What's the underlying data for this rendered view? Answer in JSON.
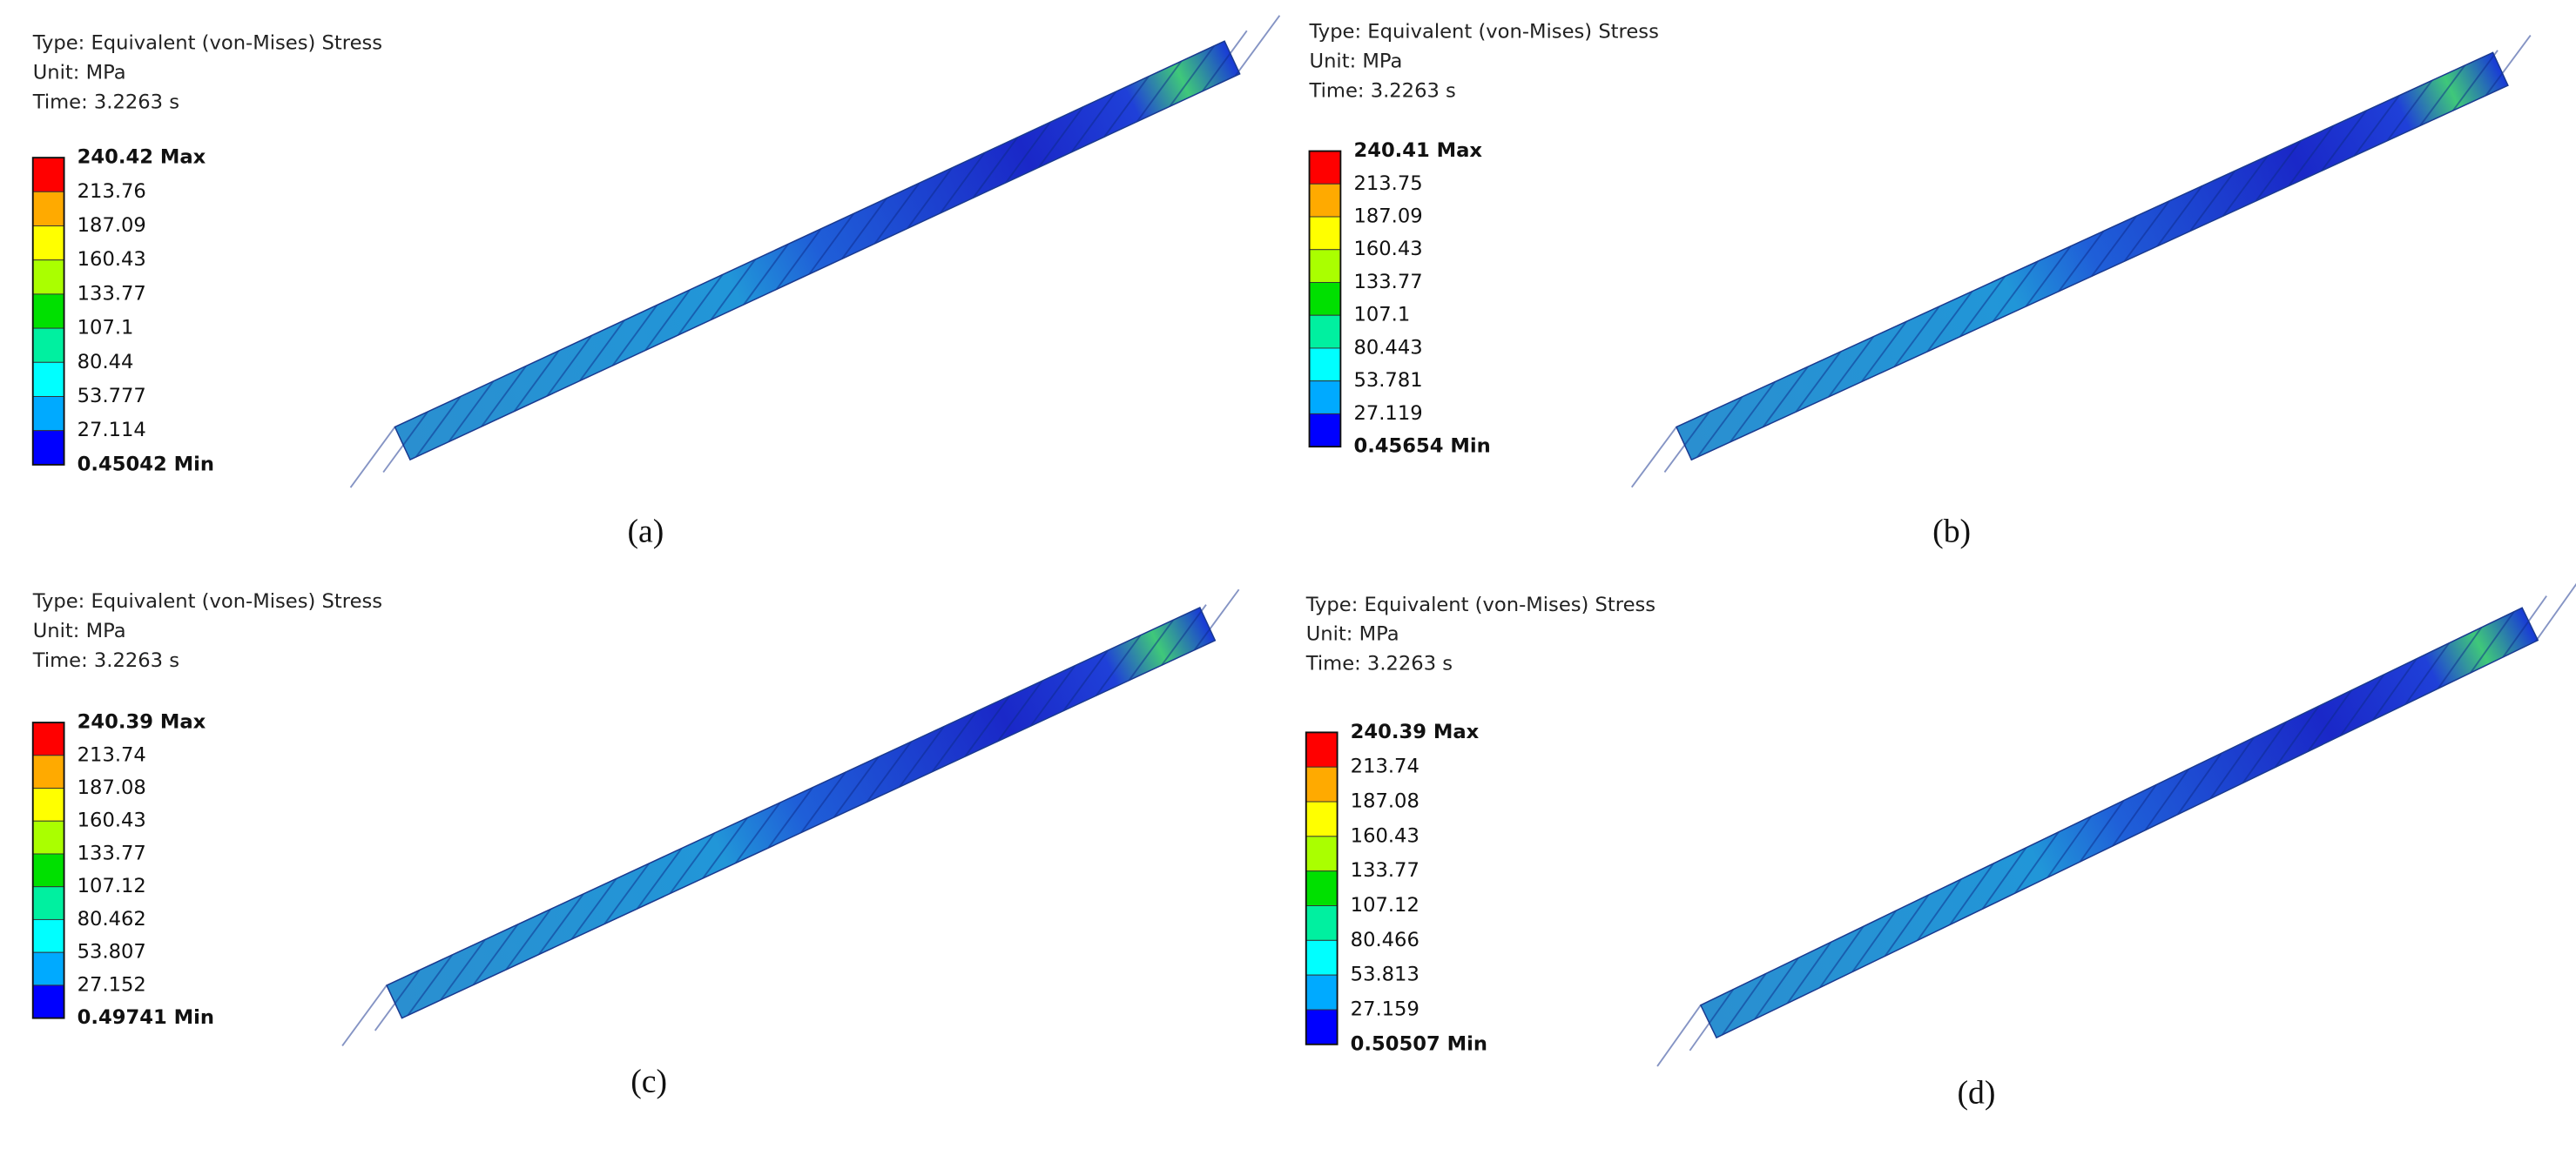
{
  "panels": [
    {
      "type_line": "Type: Equivalent (von-Mises) Stress",
      "unit_line": "Unit: MPa",
      "time_line": "Time: 3.2263 s",
      "legend": [
        "240.42 Max",
        "213.76",
        "187.09",
        "160.43",
        "133.77",
        "107.1",
        "80.44",
        "53.777",
        "27.114",
        "0.45042 Min"
      ],
      "caption": "(a)"
    },
    {
      "type_line": "Type: Equivalent (von-Mises) Stress",
      "unit_line": "Unit: MPa",
      "time_line": "Time: 3.2263 s",
      "legend": [
        "240.41 Max",
        "213.75",
        "187.09",
        "160.43",
        "133.77",
        "107.1",
        "80.443",
        "53.781",
        "27.119",
        "0.45654 Min"
      ],
      "caption": "(b)"
    },
    {
      "type_line": "Type: Equivalent (von-Mises) Stress",
      "unit_line": "Unit: MPa",
      "time_line": "Time: 3.2263 s",
      "legend": [
        "240.39 Max",
        "213.74",
        "187.08",
        "160.43",
        "133.77",
        "107.12",
        "80.462",
        "53.807",
        "27.152",
        "0.49741 Min"
      ],
      "caption": "(c)"
    },
    {
      "type_line": "Type: Equivalent (von-Mises) Stress",
      "unit_line": "Unit: MPa",
      "time_line": "Time: 3.2263 s",
      "legend": [
        "240.39 Max",
        "213.74",
        "187.08",
        "160.43",
        "133.77",
        "107.12",
        "80.466",
        "53.813",
        "27.159",
        "0.50507 Min"
      ],
      "caption": "(d)"
    }
  ]
}
